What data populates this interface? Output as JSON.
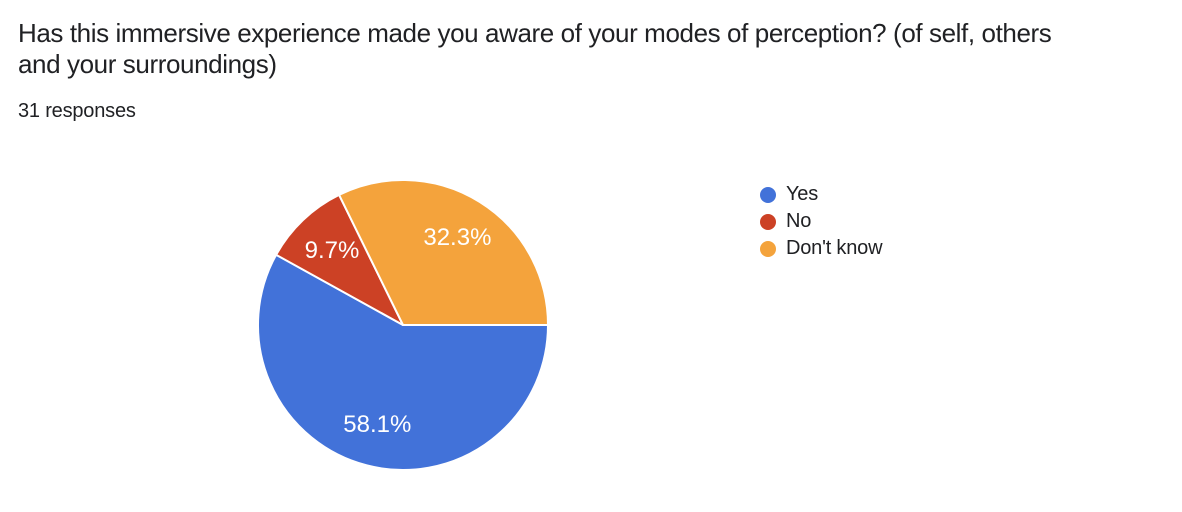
{
  "header": {
    "title_lines": [
      "Has this immersive experience made you aware of your modes of perception? (of self, others",
      "and your surroundings)"
    ],
    "responses_count": "31 responses"
  },
  "chart_data": {
    "type": "pie",
    "title": "Has this immersive experience made you aware of your modes of perception? (of self, others and your surroundings)",
    "subtitle": "31 responses",
    "legend_position": "right",
    "start_angle_deg": 0,
    "direction": "clockwise",
    "label_color": "#ffffff",
    "label_font_size": 24,
    "label_radius_fraction": 0.71,
    "slice_separator_color": "#ffffff",
    "slices": [
      {
        "label": "Yes",
        "value": 58.1,
        "display": "58.1%",
        "color": "#4272d9"
      },
      {
        "label": "No",
        "value": 9.7,
        "display": "9.7%",
        "color": "#cc4125"
      },
      {
        "label": "Don't know",
        "value": 32.3,
        "display": "32.3%",
        "color": "#f4a33c"
      }
    ]
  }
}
